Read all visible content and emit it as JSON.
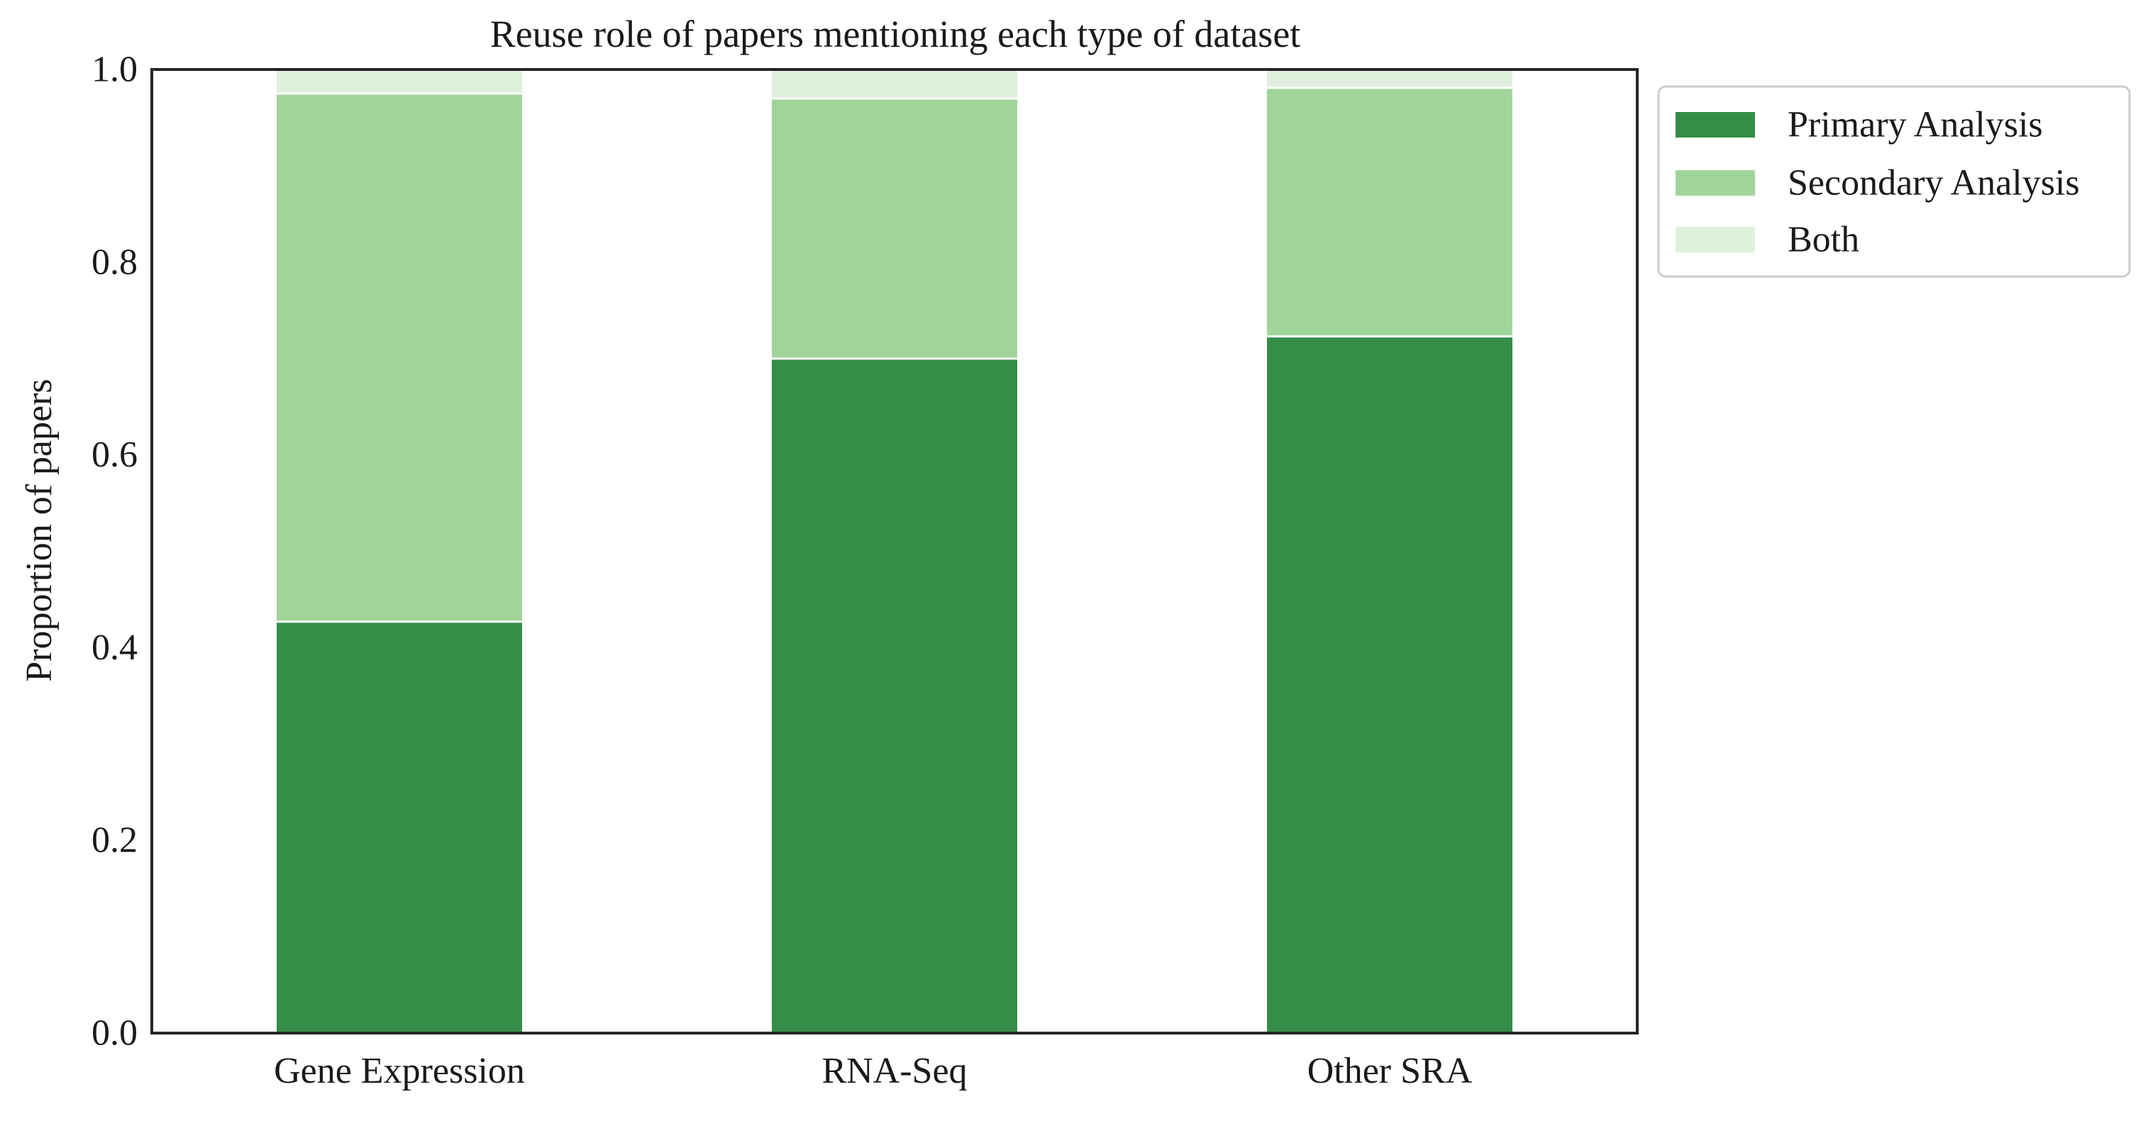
{
  "chart_data": {
    "type": "bar",
    "stacked": true,
    "title": "Reuse role of papers mentioning each type of dataset",
    "xlabel": "",
    "ylabel": "Proportion of papers",
    "ylim": [
      0,
      1
    ],
    "yticks": [
      "0.0",
      "0.2",
      "0.4",
      "0.6",
      "0.8",
      "1.0"
    ],
    "categories": [
      "Gene Expression",
      "RNA-Seq",
      "Other SRA"
    ],
    "series": [
      {
        "name": "Primary Analysis",
        "color": "#358e48",
        "values": [
          0.427,
          0.7,
          0.723
        ]
      },
      {
        "name": "Secondary Analysis",
        "color": "#a0d59a",
        "values": [
          0.548,
          0.27,
          0.258
        ]
      },
      {
        "name": "Both",
        "color": "#dff1dc",
        "values": [
          0.025,
          0.03,
          0.019
        ]
      }
    ],
    "grid": false,
    "legend": "outside-top-right"
  }
}
